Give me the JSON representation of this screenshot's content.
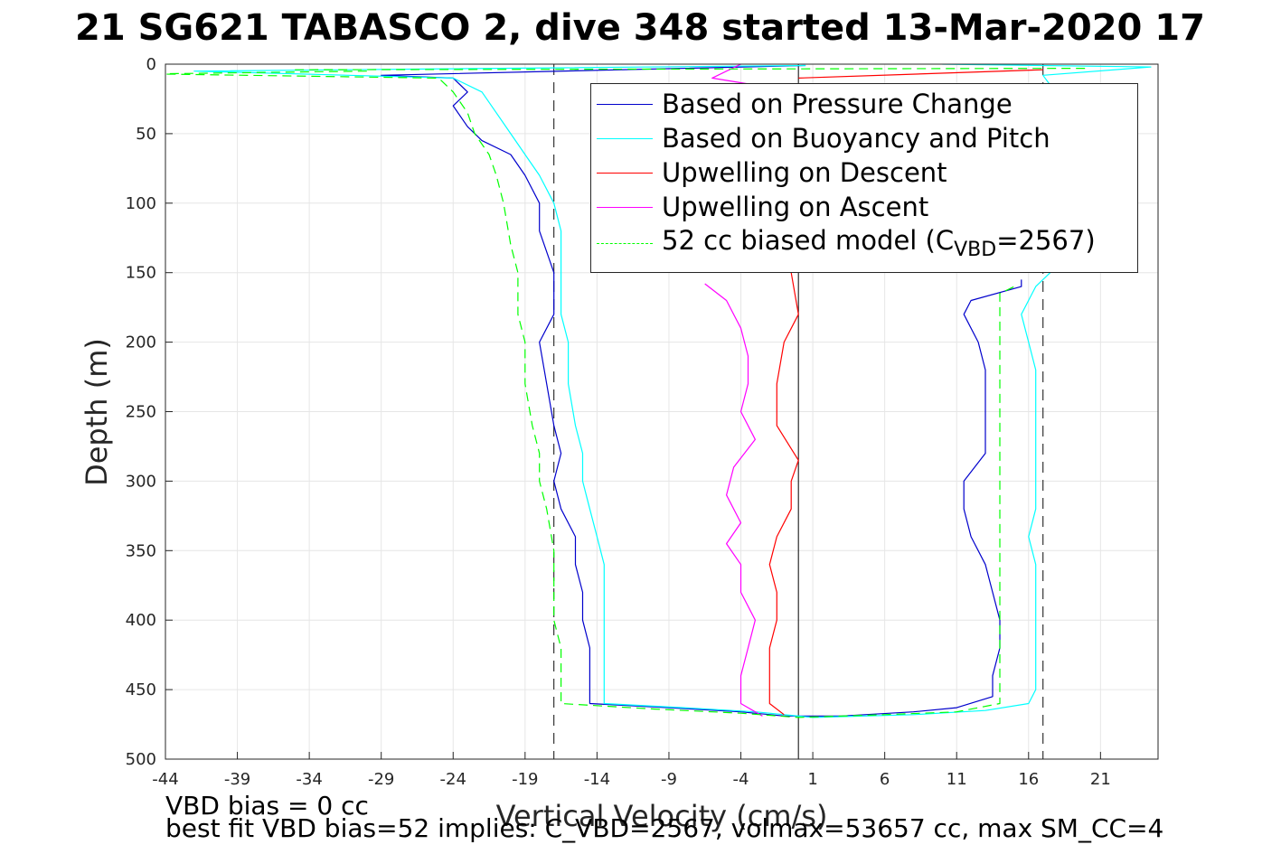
{
  "title": "21 SG621 TABASCO 2, dive 348 started 13-Mar-2020 17",
  "notes": {
    "vbd_bias": "VBD bias = 0 cc",
    "best_fit": "best fit VBD bias=52 implies: C_VBD=2567, volmax=53657 cc, max SM_CC=4"
  },
  "legend": {
    "pressure": "Based on Pressure Change",
    "buoyancy": "Based on Buoyancy and Pitch",
    "up_descent": "Upwelling on Descent",
    "up_ascent": "Upwelling on Ascent",
    "model_prefix": "52 cc biased model (C",
    "model_sub": "VBD",
    "model_suffix": "=2567)"
  },
  "colors": {
    "pressure": "#0000cc",
    "buoyancy": "#00ffff",
    "up_descent": "#ff0000",
    "up_ascent": "#ff00ff",
    "model": "#00ff00"
  },
  "chart_data": {
    "type": "line",
    "xlabel": "Vertical Velocity (cm/s)",
    "ylabel": "Depth (m)",
    "xlim": [
      -44,
      25
    ],
    "ylim": [
      0,
      500
    ],
    "y_reversed": true,
    "grid": true,
    "legend_position": "top-right",
    "xticks": [
      -44,
      -39,
      -34,
      -29,
      -24,
      -19,
      -14,
      -9,
      -4,
      1,
      6,
      11,
      16,
      21
    ],
    "yticks": [
      0,
      50,
      100,
      150,
      200,
      250,
      300,
      350,
      400,
      450,
      500
    ],
    "reference_lines": {
      "solid_vertical_x": 0,
      "dashed_vertical_x": [
        -17,
        17
      ]
    },
    "series": [
      {
        "key": "pressure",
        "name": "Based on Pressure Change",
        "style": "solid",
        "segments": [
          [
            [
              0.5,
              1
            ],
            [
              -29,
              8
            ],
            [
              -24,
              10
            ],
            [
              -23,
              20
            ],
            [
              -24,
              30
            ],
            [
              -23,
              45
            ],
            [
              -22,
              55
            ],
            [
              -20,
              65
            ],
            [
              -19,
              80
            ],
            [
              -18,
              100
            ],
            [
              -18,
              120
            ],
            [
              -17,
              150
            ],
            [
              -17,
              180
            ],
            [
              -18,
              200
            ],
            [
              -17.5,
              230
            ],
            [
              -17,
              260
            ],
            [
              -16.5,
              280
            ],
            [
              -17,
              300
            ],
            [
              -16.5,
              320
            ],
            [
              -15.5,
              340
            ],
            [
              -15.5,
              360
            ],
            [
              -15,
              380
            ],
            [
              -15,
              400
            ],
            [
              -14.5,
              420
            ],
            [
              -14.5,
              440
            ],
            [
              -14.5,
              460
            ],
            [
              -9,
              463
            ],
            [
              -4,
              466
            ],
            [
              -1,
              469
            ],
            [
              3,
              469
            ],
            [
              8,
              466
            ],
            [
              11,
              463
            ],
            [
              13.5,
              455
            ],
            [
              13.5,
              440
            ],
            [
              14,
              420
            ],
            [
              14,
              400
            ],
            [
              13.5,
              380
            ],
            [
              13,
              360
            ],
            [
              12,
              340
            ],
            [
              11.5,
              320
            ],
            [
              11.5,
              300
            ],
            [
              13,
              280
            ],
            [
              13,
              260
            ],
            [
              13,
              240
            ],
            [
              13,
              220
            ],
            [
              12.5,
              200
            ],
            [
              11.5,
              180
            ],
            [
              12,
              170
            ],
            [
              15.5,
              160
            ],
            [
              15.5,
              155
            ]
          ]
        ]
      },
      {
        "key": "buoyancy",
        "name": "Based on Buoyancy and Pitch",
        "style": "solid",
        "segments": [
          [
            [
              0.5,
              1
            ],
            [
              -42,
              5
            ],
            [
              -24,
              10
            ],
            [
              -22,
              20
            ],
            [
              -21,
              35
            ],
            [
              -20,
              50
            ],
            [
              -19,
              65
            ],
            [
              -18,
              80
            ],
            [
              -17,
              100
            ],
            [
              -16.5,
              120
            ],
            [
              -16.5,
              150
            ],
            [
              -16.5,
              180
            ],
            [
              -16,
              200
            ],
            [
              -16,
              230
            ],
            [
              -15.5,
              260
            ],
            [
              -15,
              280
            ],
            [
              -15,
              300
            ],
            [
              -14.5,
              320
            ],
            [
              -14,
              340
            ],
            [
              -13.5,
              360
            ],
            [
              -13.5,
              380
            ],
            [
              -13.5,
              400
            ],
            [
              -13.5,
              420
            ],
            [
              -13.5,
              440
            ],
            [
              -13.5,
              460
            ],
            [
              -8,
              463
            ],
            [
              -3,
              466
            ],
            [
              1,
              470
            ],
            [
              8,
              468
            ],
            [
              13,
              465
            ],
            [
              16,
              460
            ],
            [
              16.5,
              450
            ],
            [
              16.5,
              430
            ],
            [
              16.5,
              400
            ],
            [
              16.5,
              380
            ],
            [
              16.5,
              360
            ],
            [
              16,
              340
            ],
            [
              16.5,
              320
            ],
            [
              16.5,
              300
            ],
            [
              16.5,
              280
            ],
            [
              16.5,
              260
            ],
            [
              16.5,
              240
            ],
            [
              16.5,
              220
            ],
            [
              16,
              200
            ],
            [
              15.5,
              180
            ],
            [
              16.5,
              160
            ],
            [
              17.5,
              150
            ]
          ],
          [
            [
              10,
              0
            ],
            [
              24.5,
              2
            ],
            [
              17,
              8
            ],
            [
              17.5,
              15
            ]
          ]
        ]
      },
      {
        "key": "up_descent",
        "name": "Upwelling on Descent",
        "style": "solid",
        "segments": [
          [
            [
              -0.5,
              150
            ],
            [
              0,
              180
            ],
            [
              -1,
              200
            ],
            [
              -1.5,
              230
            ],
            [
              -1.5,
              260
            ],
            [
              0,
              285
            ],
            [
              -0.5,
              300
            ],
            [
              -0.5,
              320
            ],
            [
              -1.5,
              340
            ],
            [
              -2,
              360
            ],
            [
              -1.5,
              380
            ],
            [
              -1.5,
              400
            ],
            [
              -2,
              420
            ],
            [
              -2,
              440
            ],
            [
              -2,
              460
            ],
            [
              -1,
              468
            ]
          ],
          [
            [
              0,
              10
            ],
            [
              17,
              4
            ]
          ]
        ]
      },
      {
        "key": "up_ascent",
        "name": "Upwelling on Ascent",
        "style": "solid",
        "segments": [
          [
            [
              -6.5,
              158
            ],
            [
              -5,
              170
            ],
            [
              -4,
              190
            ],
            [
              -3.5,
              210
            ],
            [
              -3.5,
              230
            ],
            [
              -4,
              250
            ],
            [
              -3,
              270
            ],
            [
              -4.5,
              290
            ],
            [
              -5,
              310
            ],
            [
              -4,
              330
            ],
            [
              -5,
              345
            ],
            [
              -4,
              360
            ],
            [
              -4,
              380
            ],
            [
              -3,
              400
            ],
            [
              -3.5,
              420
            ],
            [
              -4,
              440
            ],
            [
              -4,
              460
            ],
            [
              -2.5,
              469
            ]
          ],
          [
            [
              -4,
              0
            ],
            [
              -6,
              10
            ],
            [
              -3,
              15
            ]
          ]
        ]
      },
      {
        "key": "model",
        "name": "52 cc biased model (CVBD=2567)",
        "style": "dashed",
        "segments": [
          [
            [
              -30,
              5
            ],
            [
              -45,
              7
            ],
            [
              -25,
              10
            ],
            [
              -24,
              20
            ],
            [
              -23,
              35
            ],
            [
              -22.5,
              50
            ],
            [
              -21.5,
              65
            ],
            [
              -21,
              80
            ],
            [
              -20.5,
              100
            ],
            [
              -20,
              130
            ],
            [
              -19.5,
              150
            ],
            [
              -19.5,
              180
            ],
            [
              -19,
              200
            ],
            [
              -19,
              230
            ],
            [
              -18.5,
              260
            ],
            [
              -18,
              280
            ],
            [
              -18,
              300
            ],
            [
              -17.5,
              320
            ],
            [
              -17,
              350
            ],
            [
              -17,
              370
            ],
            [
              -17,
              400
            ],
            [
              -16.5,
              420
            ],
            [
              -16.5,
              440
            ],
            [
              -16.5,
              460
            ],
            [
              -10,
              464
            ],
            [
              -4,
              467
            ],
            [
              0,
              470
            ],
            [
              6,
              468
            ],
            [
              11,
              466
            ],
            [
              14,
              460
            ],
            [
              14,
              440
            ],
            [
              14,
              420
            ],
            [
              14,
              400
            ],
            [
              14,
              380
            ],
            [
              14,
              360
            ],
            [
              14,
              340
            ],
            [
              14,
              320
            ],
            [
              14,
              300
            ],
            [
              14,
              280
            ],
            [
              14,
              260
            ],
            [
              14,
              240
            ],
            [
              14,
              220
            ],
            [
              14,
              200
            ],
            [
              14,
              180
            ],
            [
              14,
              165
            ],
            [
              15,
              160
            ]
          ],
          [
            [
              -35,
              4
            ],
            [
              20,
              3
            ]
          ]
        ]
      }
    ]
  }
}
